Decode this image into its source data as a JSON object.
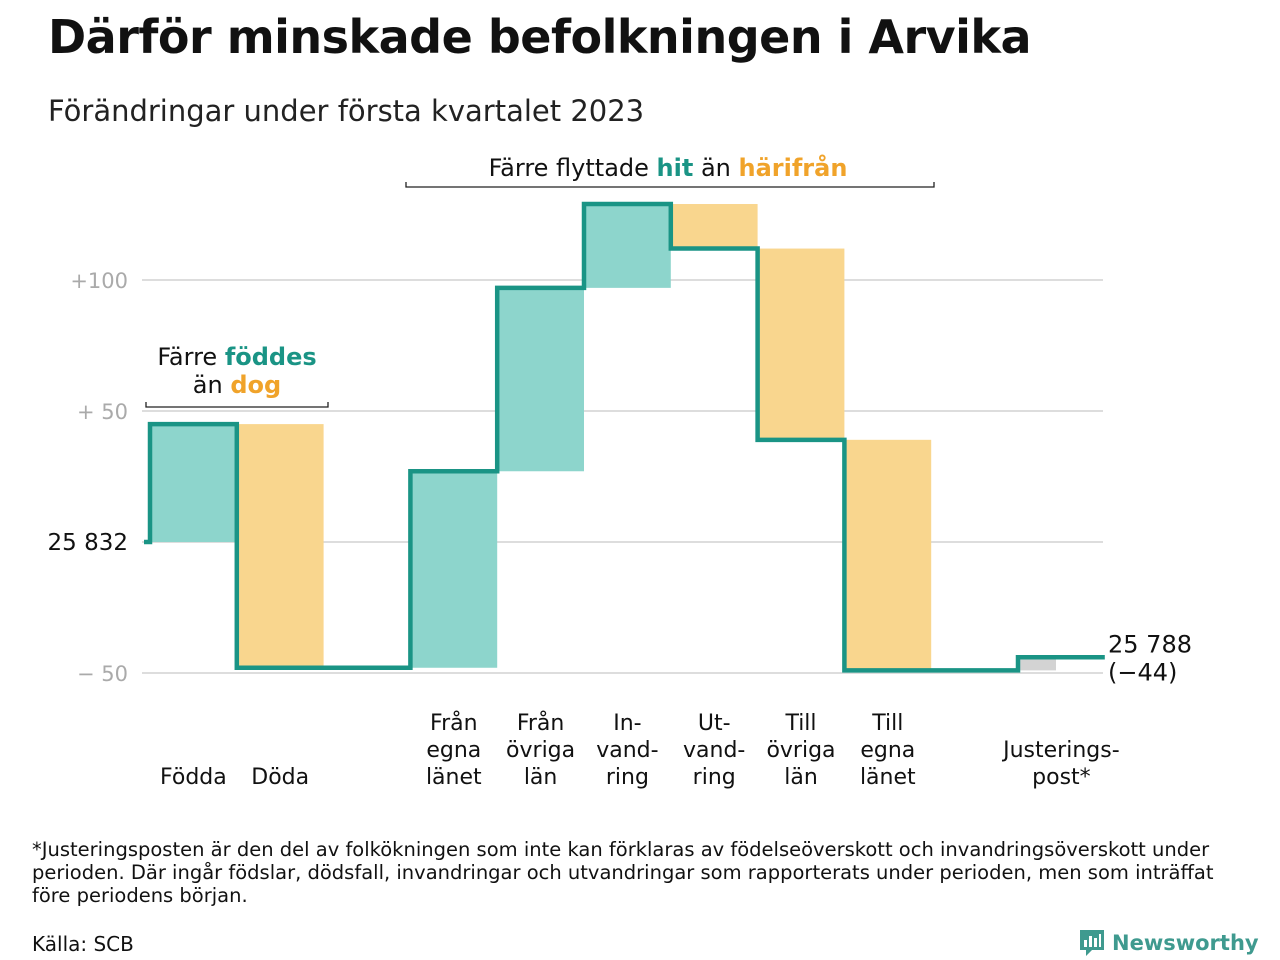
{
  "title": "Därför minskade befolkningen i Arvika",
  "subtitle": "Förändringar under första kvartalet 2023",
  "colors": {
    "increase": "#8dd5cc",
    "decrease": "#f9d68e",
    "adjustment": "#d3d3d3",
    "line": "#1a9485",
    "grid": "#dddddd",
    "tick": "#aaaaaa",
    "teal_text": "#1a9485",
    "orange_text": "#f0a32a"
  },
  "chart_data": {
    "type": "waterfall",
    "start_value": 25832,
    "start_label": "25 832",
    "end_label_value": "25 788",
    "end_label_change": "(−44)",
    "y_relative_range": [
      -60,
      130
    ],
    "grid_values": [
      -50,
      0,
      50,
      100
    ],
    "y_tick_labels": [
      {
        "value": 100,
        "label": "+100"
      },
      {
        "value": 50,
        "label": "+ 50"
      },
      {
        "value": -50,
        "label": "− 50"
      }
    ],
    "steps": [
      {
        "label": [
          "Födda"
        ],
        "value": 45,
        "kind": "increase"
      },
      {
        "label": [
          "Döda"
        ],
        "value": -93,
        "kind": "decrease"
      },
      {
        "label": [],
        "value": 0,
        "kind": "gap"
      },
      {
        "label": [
          "Från",
          "egna",
          "länet"
        ],
        "value": 75,
        "kind": "increase"
      },
      {
        "label": [
          "Från",
          "övriga",
          "län"
        ],
        "value": 70,
        "kind": "increase"
      },
      {
        "label": [
          "In-",
          "vand-",
          "ring"
        ],
        "value": 32,
        "kind": "increase"
      },
      {
        "label": [
          "Ut-",
          "vand-",
          "ring"
        ],
        "value": -17,
        "kind": "decrease"
      },
      {
        "label": [
          "Till",
          "övriga",
          "län"
        ],
        "value": -73,
        "kind": "decrease"
      },
      {
        "label": [
          "Till",
          "egna",
          "länet"
        ],
        "value": -88,
        "kind": "decrease"
      },
      {
        "label": [],
        "value": 0,
        "kind": "gap"
      },
      {
        "label": [
          "Justerings-",
          "post*"
        ],
        "value": 5,
        "kind": "adjustment"
      }
    ],
    "annotations": [
      {
        "parts": [
          {
            "text": "Färre ",
            "color": "default"
          },
          {
            "text": "föddes",
            "color": "teal"
          }
        ],
        "parts2": [
          {
            "text": "än ",
            "color": "default"
          },
          {
            "text": "dog",
            "color": "orange"
          }
        ]
      },
      {
        "parts": [
          {
            "text": "Färre flyttade ",
            "color": "default"
          },
          {
            "text": "hit",
            "color": "teal"
          },
          {
            "text": " än ",
            "color": "default"
          },
          {
            "text": "härifrån",
            "color": "orange"
          }
        ]
      }
    ]
  },
  "footnote": "*Justeringsposten är den del av folkökningen som inte kan förklaras av födelseöverskott och invandringsöverskott under perioden. Där ingår födslar, dödsfall, invandringar och utvandringar som rapporterats under perioden, men som inträffat före periodens början.",
  "source": "Källa: SCB",
  "brand": "Newsworthy",
  "brand_icon": "newsworthy-logo-icon"
}
